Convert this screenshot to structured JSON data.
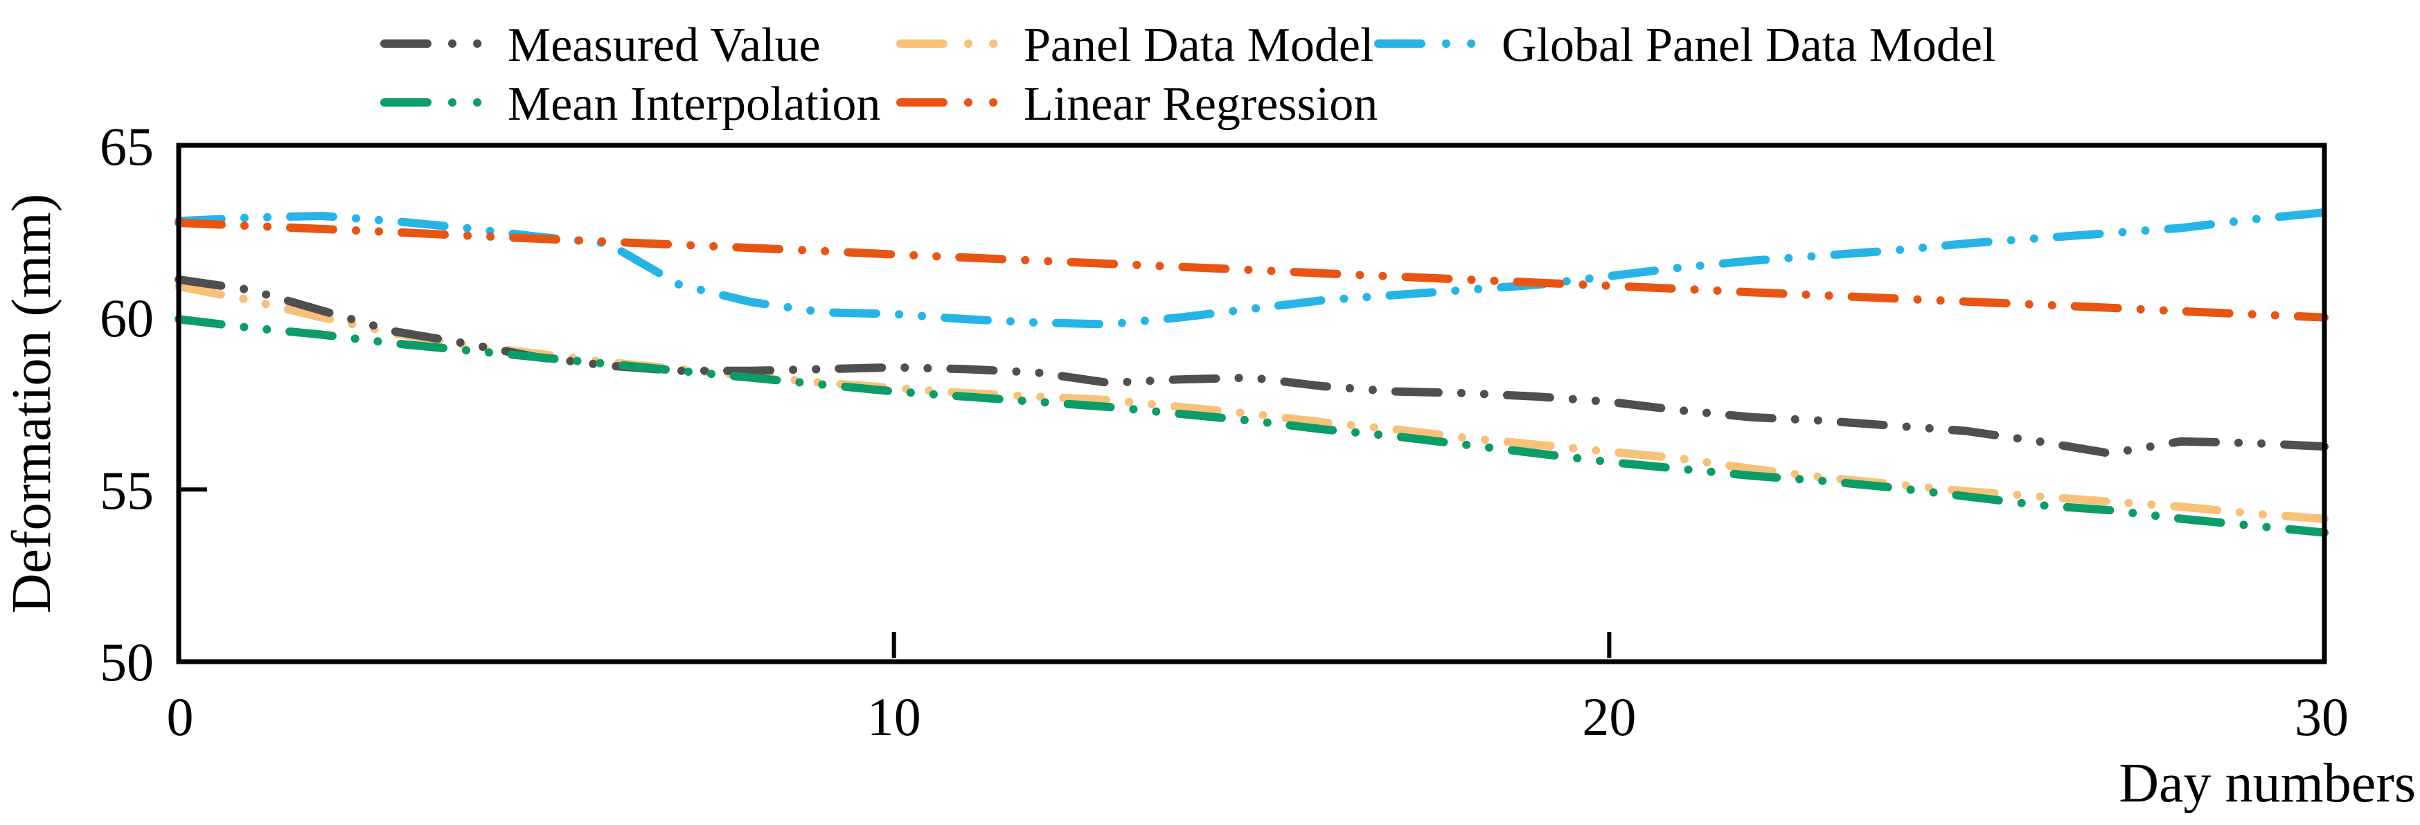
{
  "chart_data": {
    "type": "line",
    "title": "",
    "xlabel": "Day numbers",
    "ylabel": "Deformation (mm)",
    "xlim": [
      0,
      30
    ],
    "ylim": [
      50,
      65
    ],
    "xticks": [
      0,
      10,
      20,
      30
    ],
    "yticks": [
      50,
      55,
      60,
      65
    ],
    "xtick_labels": [
      "0",
      "10",
      "20",
      "30"
    ],
    "ytick_labels": [
      "50",
      "55",
      "60",
      "65"
    ],
    "grid": false,
    "legend_position": "top",
    "legend_rows": [
      [
        "Measured Value",
        "Panel Data Model",
        "Global Panel Data Model"
      ],
      [
        "Mean Interpolation",
        "Linear Regression"
      ]
    ],
    "x": [
      0,
      1,
      2,
      3,
      4,
      5,
      6,
      7,
      8,
      9,
      10,
      11,
      12,
      13,
      14,
      15,
      16,
      17,
      18,
      19,
      20,
      21,
      22,
      23,
      24,
      25,
      26,
      27,
      28,
      29,
      30
    ],
    "series": [
      {
        "name": "Measured Value",
        "color": "#4F4F4F",
        "values": [
          61.1,
          60.8,
          60.2,
          59.6,
          59.25,
          58.85,
          58.6,
          58.45,
          58.45,
          58.5,
          58.55,
          58.5,
          58.4,
          58.1,
          58.2,
          58.25,
          58.0,
          57.85,
          57.8,
          57.7,
          57.55,
          57.3,
          57.1,
          57.0,
          56.85,
          56.7,
          56.4,
          56.05,
          56.4,
          56.35,
          56.25
        ]
      },
      {
        "name": "Panel Data Model",
        "color": "#F8C178",
        "values": [
          60.9,
          60.5,
          60.0,
          59.55,
          59.2,
          58.95,
          58.7,
          58.5,
          58.3,
          58.1,
          57.95,
          57.8,
          57.7,
          57.6,
          57.4,
          57.2,
          56.95,
          56.75,
          56.5,
          56.3,
          56.1,
          55.9,
          55.6,
          55.35,
          55.15,
          54.95,
          54.8,
          54.65,
          54.5,
          54.3,
          54.15
        ]
      },
      {
        "name": "Global Panel Data Model",
        "color": "#26B4E7",
        "values": [
          62.8,
          62.9,
          62.95,
          62.8,
          62.6,
          62.35,
          62.15,
          60.95,
          60.45,
          60.15,
          60.1,
          59.95,
          59.85,
          59.8,
          60.0,
          60.25,
          60.5,
          60.65,
          60.8,
          60.95,
          61.2,
          61.45,
          61.65,
          61.8,
          61.95,
          62.15,
          62.3,
          62.45,
          62.6,
          62.85,
          63.05
        ]
      },
      {
        "name": "Mean Interpolation",
        "color": "#0A9D67",
        "values": [
          59.95,
          59.7,
          59.5,
          59.25,
          59.05,
          58.85,
          58.65,
          58.45,
          58.25,
          58.05,
          57.85,
          57.7,
          57.55,
          57.4,
          57.2,
          57.0,
          56.75,
          56.55,
          56.3,
          56.05,
          55.8,
          55.6,
          55.4,
          55.25,
          55.05,
          54.8,
          54.55,
          54.4,
          54.15,
          53.95,
          53.75
        ]
      },
      {
        "name": "Linear Regression",
        "color": "#E85411",
        "values": [
          62.75,
          62.66,
          62.57,
          62.48,
          62.38,
          62.29,
          62.2,
          62.11,
          62.02,
          61.93,
          61.83,
          61.74,
          61.65,
          61.56,
          61.47,
          61.38,
          61.28,
          61.19,
          61.1,
          61.01,
          60.92,
          60.83,
          60.73,
          60.64,
          60.55,
          60.46,
          60.37,
          60.28,
          60.18,
          60.09,
          60.0
        ]
      }
    ],
    "draw_order": [
      "Global Panel Data Model",
      "Panel Data Model",
      "Measured Value",
      "Mean Interpolation",
      "Linear Regression"
    ]
  }
}
